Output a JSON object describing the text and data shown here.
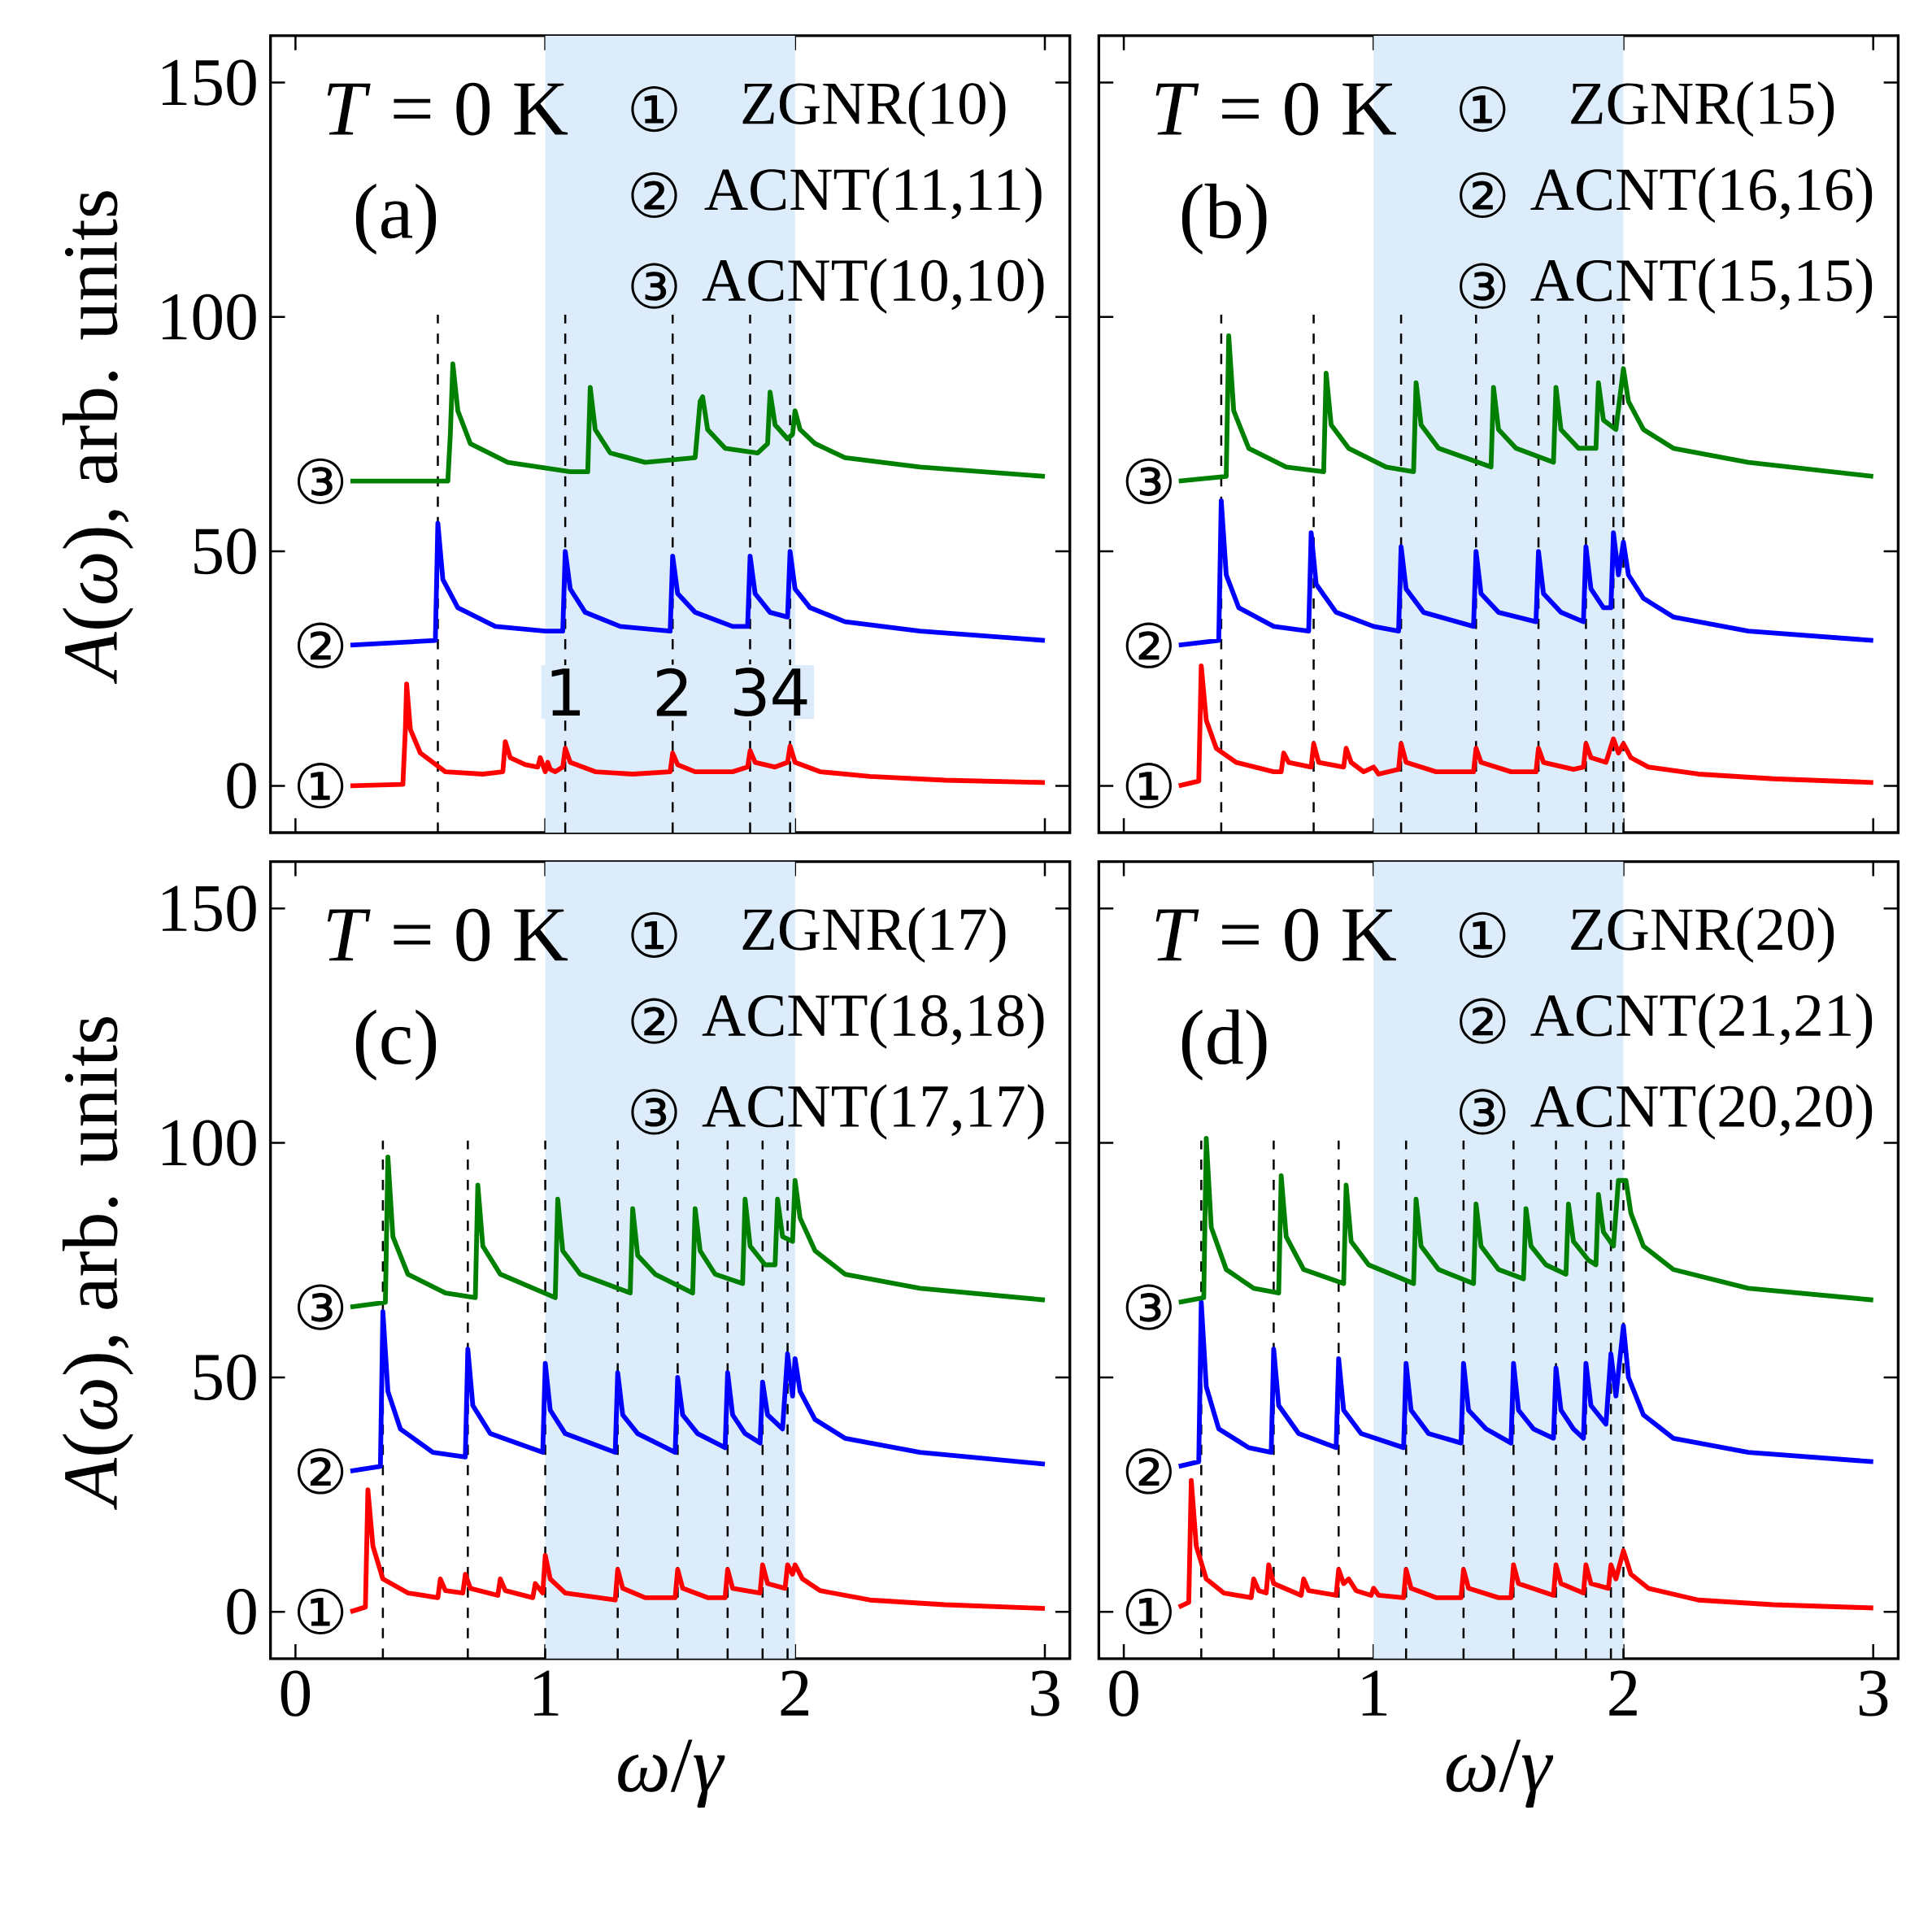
{
  "chart_data": [
    {
      "type": "line",
      "xlim": [
        -0.1,
        3.1
      ],
      "ylim": [
        -10,
        160
      ],
      "xticks": [
        0,
        1,
        2,
        3
      ],
      "yticks": [
        0,
        50,
        100,
        150
      ],
      "ylabel": "*A*(*ω*), arb. units",
      "tick_labels": "y",
      "bands": [
        {
          "axis": "x",
          "from": 1,
          "to": 2,
          "color": "#dcecfb"
        }
      ],
      "ref_lines": [
        {
          "axis": "x",
          "value": 0.57,
          "color": "#000000",
          "line_style": "dashed"
        },
        {
          "axis": "x",
          "value": 1.08,
          "color": "#000000",
          "line_style": "dashed"
        },
        {
          "axis": "x",
          "value": 1.51,
          "color": "#000000",
          "line_style": "dashed"
        },
        {
          "axis": "x",
          "value": 1.82,
          "color": "#000000",
          "line_style": "dashed"
        },
        {
          "axis": "x",
          "value": 1.98,
          "color": "#000000",
          "line_style": "dashed"
        }
      ],
      "series": [
        {
          "color": "#ff0000",
          "x": [
            0.22,
            0.43,
            0.44,
            0.445,
            0.46,
            0.5,
            0.6,
            0.75,
            0.83,
            0.84,
            0.86,
            0.92,
            0.97,
            0.98,
            1.0,
            1.01,
            1.02,
            1.04,
            1.07,
            1.08,
            1.1,
            1.2,
            1.35,
            1.5,
            1.51,
            1.53,
            1.6,
            1.75,
            1.81,
            1.82,
            1.84,
            1.92,
            1.97,
            1.98,
            2.0,
            2.1,
            2.3,
            2.6,
            3.0
          ],
          "values": [
            0,
            0.3,
            12,
            21.7,
            12,
            7,
            3,
            2.5,
            3,
            9.4,
            6,
            4.5,
            4,
            6,
            3,
            5,
            3.5,
            3,
            4,
            8,
            5,
            3,
            2.5,
            3,
            7,
            4.5,
            3,
            3,
            4,
            7.5,
            5,
            4,
            5,
            8.5,
            5,
            3,
            2,
            1.2,
            0.7
          ]
        },
        {
          "color": "#0000ff",
          "x": [
            0.22,
            0.56,
            0.57,
            0.59,
            0.65,
            0.8,
            1.0,
            1.07,
            1.08,
            1.1,
            1.16,
            1.3,
            1.5,
            1.51,
            1.53,
            1.6,
            1.75,
            1.81,
            1.82,
            1.84,
            1.9,
            1.97,
            1.98,
            2.0,
            2.06,
            2.2,
            2.5,
            3.0
          ],
          "values": [
            30,
            31,
            56,
            44,
            38,
            34,
            33,
            33,
            50,
            42,
            37,
            34,
            33,
            49,
            41,
            37,
            34,
            34,
            49,
            41,
            37,
            36,
            50,
            42,
            38,
            35,
            33,
            31
          ]
        },
        {
          "color": "#008000",
          "x": [
            0.22,
            0.61,
            0.62,
            0.63,
            0.65,
            0.7,
            0.85,
            1.1,
            1.17,
            1.18,
            1.2,
            1.26,
            1.4,
            1.6,
            1.62,
            1.63,
            1.65,
            1.72,
            1.85,
            1.89,
            1.9,
            1.92,
            1.97,
            1.99,
            2.0,
            2.02,
            2.08,
            2.2,
            2.5,
            3.0
          ],
          "values": [
            65,
            65,
            75,
            90,
            80,
            73,
            69,
            67,
            67,
            85,
            76,
            71,
            69,
            70,
            82,
            83,
            76,
            72,
            71,
            73,
            84,
            77,
            74,
            75,
            80,
            76,
            73,
            70,
            68,
            66
          ]
        }
      ],
      "annotations": [
        "*T* = 0 K",
        "(a)",
        "①",
        "ZGNR(10)",
        "②",
        "ACNT(11,11)",
        "③",
        "ACNT(10,10)",
        "①",
        "②",
        "③",
        {
          "text": "1",
          "x": 1.08,
          "y": 20
        },
        {
          "text": "2",
          "x": 1.51,
          "y": 20
        },
        {
          "text": "3",
          "x": 1.82,
          "y": 20
        },
        {
          "text": "4",
          "x": 1.98,
          "y": 20
        }
      ]
    },
    {
      "type": "line",
      "xlim": [
        -0.1,
        3.1
      ],
      "ylim": [
        -10,
        160
      ],
      "xticks": [
        0,
        1,
        2,
        3
      ],
      "yticks": [
        0,
        50,
        100,
        150
      ],
      "tick_labels": false,
      "bands": [
        {
          "axis": "x",
          "from": 1,
          "to": 2,
          "color": "#dcecfb"
        }
      ],
      "ref_lines": [
        {
          "axis": "x",
          "value": 0.39,
          "color": "#000000",
          "line_style": "dashed"
        },
        {
          "axis": "x",
          "value": 0.76,
          "color": "#000000",
          "line_style": "dashed"
        },
        {
          "axis": "x",
          "value": 1.11,
          "color": "#000000",
          "line_style": "dashed"
        },
        {
          "axis": "x",
          "value": 1.41,
          "color": "#000000",
          "line_style": "dashed"
        },
        {
          "axis": "x",
          "value": 1.66,
          "color": "#000000",
          "line_style": "dashed"
        },
        {
          "axis": "x",
          "value": 1.85,
          "color": "#000000",
          "line_style": "dashed"
        },
        {
          "axis": "x",
          "value": 1.96,
          "color": "#000000",
          "line_style": "dashed"
        },
        {
          "axis": "x",
          "value": 2.0,
          "color": "#000000",
          "line_style": "dashed"
        }
      ],
      "series": [
        {
          "color": "#ff0000",
          "x": [
            0.22,
            0.3,
            0.31,
            0.33,
            0.37,
            0.45,
            0.6,
            0.63,
            0.64,
            0.66,
            0.75,
            0.76,
            0.78,
            0.88,
            0.89,
            0.91,
            0.96,
            1.0,
            1.02,
            1.1,
            1.11,
            1.13,
            1.25,
            1.4,
            1.41,
            1.43,
            1.55,
            1.65,
            1.66,
            1.68,
            1.8,
            1.84,
            1.85,
            1.87,
            1.93,
            1.96,
            1.98,
            2.0,
            2.03,
            2.1,
            2.3,
            2.6,
            3.0
          ],
          "values": [
            0,
            1,
            25.6,
            14,
            8,
            5,
            3,
            3,
            7,
            5,
            4,
            9,
            5,
            4,
            8,
            5,
            3,
            4,
            2.5,
            3.5,
            9,
            5,
            3,
            3,
            8,
            5,
            3,
            3,
            8,
            5,
            3.5,
            4,
            9,
            6,
            5,
            10,
            7,
            9,
            6,
            4,
            2.5,
            1.5,
            0.7
          ]
        },
        {
          "color": "#0000ff",
          "x": [
            0.22,
            0.38,
            0.39,
            0.41,
            0.46,
            0.6,
            0.74,
            0.75,
            0.77,
            0.85,
            1.0,
            1.1,
            1.11,
            1.13,
            1.2,
            1.4,
            1.41,
            1.43,
            1.5,
            1.65,
            1.66,
            1.68,
            1.75,
            1.84,
            1.85,
            1.87,
            1.92,
            1.95,
            1.96,
            1.98,
            2.0,
            2.02,
            2.08,
            2.2,
            2.5,
            3.0
          ],
          "values": [
            30,
            31,
            60.8,
            45,
            38,
            34,
            33,
            54,
            43,
            37,
            34,
            33,
            51,
            42,
            37,
            34,
            50,
            41,
            37,
            35,
            50,
            41,
            37,
            35,
            51,
            42,
            38,
            38,
            54,
            45,
            52,
            45,
            40,
            36,
            33,
            31
          ]
        },
        {
          "color": "#008000",
          "x": [
            0.22,
            0.41,
            0.42,
            0.44,
            0.5,
            0.65,
            0.8,
            0.81,
            0.83,
            0.9,
            1.05,
            1.16,
            1.17,
            1.19,
            1.26,
            1.47,
            1.48,
            1.5,
            1.57,
            1.72,
            1.73,
            1.75,
            1.82,
            1.89,
            1.9,
            1.92,
            1.97,
            2.0,
            2.02,
            2.08,
            2.2,
            2.5,
            3.0
          ],
          "values": [
            65,
            66,
            96,
            80,
            72,
            68,
            67,
            88,
            77,
            72,
            68,
            67,
            86,
            77,
            72,
            68,
            85,
            76,
            72,
            69,
            85,
            76,
            72,
            72,
            86,
            78,
            76,
            89,
            82,
            76,
            72,
            69,
            66
          ]
        }
      ],
      "annotations": [
        "*T* = 0 K",
        "(b)",
        "①",
        "ZGNR(15)",
        "②",
        "ACNT(16,16)",
        "③",
        "ACNT(15,15)",
        "①",
        "②",
        "③"
      ]
    },
    {
      "type": "line",
      "xlim": [
        -0.1,
        3.1
      ],
      "ylim": [
        -10,
        160
      ],
      "xticks": [
        0,
        1,
        2,
        3
      ],
      "yticks": [
        0,
        50,
        100,
        150
      ],
      "xlabel": "*ω*/*γ*",
      "ylabel": "*A*(*ω*), arb. units",
      "bands": [
        {
          "axis": "x",
          "from": 1,
          "to": 2,
          "color": "#dcecfb"
        }
      ],
      "ref_lines": [
        {
          "axis": "x",
          "value": 0.35,
          "color": "#000000",
          "line_style": "dashed"
        },
        {
          "axis": "x",
          "value": 0.69,
          "color": "#000000",
          "line_style": "dashed"
        },
        {
          "axis": "x",
          "value": 1.0,
          "color": "#000000",
          "line_style": "dashed"
        },
        {
          "axis": "x",
          "value": 1.29,
          "color": "#000000",
          "line_style": "dashed"
        },
        {
          "axis": "x",
          "value": 1.53,
          "color": "#000000",
          "line_style": "dashed"
        },
        {
          "axis": "x",
          "value": 1.73,
          "color": "#000000",
          "line_style": "dashed"
        },
        {
          "axis": "x",
          "value": 1.87,
          "color": "#000000",
          "line_style": "dashed"
        },
        {
          "axis": "x",
          "value": 1.97,
          "color": "#000000",
          "line_style": "dashed"
        }
      ],
      "series": [
        {
          "color": "#ff0000",
          "x": [
            0.22,
            0.28,
            0.29,
            0.31,
            0.35,
            0.45,
            0.57,
            0.58,
            0.6,
            0.67,
            0.68,
            0.7,
            0.81,
            0.82,
            0.84,
            0.95,
            0.96,
            0.99,
            1.0,
            1.02,
            1.08,
            1.28,
            1.29,
            1.31,
            1.4,
            1.52,
            1.53,
            1.55,
            1.65,
            1.72,
            1.73,
            1.75,
            1.86,
            1.87,
            1.89,
            1.96,
            1.97,
            1.99,
            2.0,
            2.03,
            2.1,
            2.3,
            2.6,
            3.0
          ],
          "values": [
            0,
            1,
            26,
            14,
            7,
            4,
            3,
            7,
            4.5,
            4,
            8,
            5,
            3.5,
            7,
            4.5,
            3,
            6,
            4,
            12,
            7,
            4,
            2.5,
            9,
            5,
            3,
            3,
            9,
            5,
            3,
            3,
            9,
            5,
            4,
            10,
            6,
            5,
            10,
            8,
            10,
            7,
            4.5,
            2.5,
            1.5,
            0.7
          ]
        },
        {
          "color": "#0000ff",
          "x": [
            0.22,
            0.34,
            0.35,
            0.37,
            0.42,
            0.55,
            0.68,
            0.69,
            0.71,
            0.78,
            0.99,
            1.0,
            1.02,
            1.08,
            1.28,
            1.29,
            1.31,
            1.37,
            1.52,
            1.53,
            1.55,
            1.61,
            1.72,
            1.73,
            1.75,
            1.8,
            1.86,
            1.87,
            1.89,
            1.95,
            1.97,
            1.99,
            2.0,
            2.02,
            2.08,
            2.2,
            2.5,
            3.0
          ],
          "values": [
            30,
            31,
            64,
            47,
            39,
            34,
            33,
            56,
            44,
            38,
            34,
            53,
            43,
            38,
            34,
            51,
            42,
            38,
            34,
            50,
            42,
            38,
            35,
            51,
            42,
            38,
            36,
            49,
            42,
            39,
            55,
            46,
            54,
            47,
            41,
            37,
            34,
            31.5
          ]
        },
        {
          "color": "#008000",
          "x": [
            0.22,
            0.36,
            0.37,
            0.39,
            0.45,
            0.6,
            0.72,
            0.73,
            0.75,
            0.82,
            1.04,
            1.05,
            1.07,
            1.14,
            1.34,
            1.35,
            1.37,
            1.44,
            1.59,
            1.6,
            1.62,
            1.68,
            1.79,
            1.8,
            1.82,
            1.88,
            1.92,
            1.93,
            1.95,
            1.99,
            2.0,
            2.02,
            2.08,
            2.2,
            2.5,
            3.0
          ],
          "values": [
            65,
            66,
            97,
            80,
            72,
            68,
            67,
            91,
            78,
            72,
            67,
            88,
            77,
            72,
            68,
            86,
            76,
            72,
            68,
            86,
            77,
            72,
            70,
            88,
            78,
            74,
            74,
            88,
            80,
            79,
            92,
            84,
            77,
            72,
            69,
            66.5
          ]
        }
      ],
      "annotations": [
        "*T* = 0 K",
        "(c)",
        "①",
        "ZGNR(17)",
        "②",
        "ACNT(18,18)",
        "③",
        "ACNT(17,17)",
        "①",
        "②",
        "③"
      ]
    },
    {
      "type": "line",
      "xlim": [
        -0.1,
        3.1
      ],
      "ylim": [
        -10,
        160
      ],
      "xticks": [
        0,
        1,
        2,
        3
      ],
      "yticks": [
        0,
        50,
        100,
        150
      ],
      "xlabel": "*ω*/*γ*",
      "tick_labels": "x",
      "bands": [
        {
          "axis": "x",
          "from": 1,
          "to": 2,
          "color": "#dcecfb"
        }
      ],
      "ref_lines": [
        {
          "axis": "x",
          "value": 0.31,
          "color": "#000000",
          "line_style": "dashed"
        },
        {
          "axis": "x",
          "value": 0.6,
          "color": "#000000",
          "line_style": "dashed"
        },
        {
          "axis": "x",
          "value": 0.86,
          "color": "#000000",
          "line_style": "dashed"
        },
        {
          "axis": "x",
          "value": 1.13,
          "color": "#000000",
          "line_style": "dashed"
        },
        {
          "axis": "x",
          "value": 1.36,
          "color": "#000000",
          "line_style": "dashed"
        },
        {
          "axis": "x",
          "value": 1.56,
          "color": "#000000",
          "line_style": "dashed"
        },
        {
          "axis": "x",
          "value": 1.73,
          "color": "#000000",
          "line_style": "dashed"
        },
        {
          "axis": "x",
          "value": 1.85,
          "color": "#000000",
          "line_style": "dashed"
        },
        {
          "axis": "x",
          "value": 1.95,
          "color": "#000000",
          "line_style": "dashed"
        },
        {
          "axis": "x",
          "value": 2.0,
          "color": "#000000",
          "line_style": "dashed"
        }
      ],
      "series": [
        {
          "color": "#ff0000",
          "x": [
            0.22,
            0.26,
            0.27,
            0.29,
            0.33,
            0.4,
            0.51,
            0.52,
            0.54,
            0.57,
            0.58,
            0.6,
            0.71,
            0.72,
            0.74,
            0.85,
            0.86,
            0.88,
            0.9,
            0.93,
            0.99,
            1.0,
            1.02,
            1.12,
            1.13,
            1.15,
            1.25,
            1.35,
            1.36,
            1.38,
            1.5,
            1.55,
            1.56,
            1.58,
            1.72,
            1.73,
            1.75,
            1.84,
            1.85,
            1.87,
            1.94,
            1.95,
            1.97,
            2.0,
            2.03,
            2.1,
            2.3,
            2.6,
            3.0
          ],
          "values": [
            1,
            2,
            28,
            14,
            7,
            4,
            3,
            7,
            4.5,
            4,
            10,
            6,
            3.5,
            7,
            4.5,
            3.5,
            9,
            6,
            7,
            4.5,
            3.5,
            5,
            3.5,
            3,
            9,
            5,
            3,
            3,
            9,
            5,
            3,
            3,
            10,
            6,
            3.5,
            10,
            6,
            4,
            10,
            6,
            5,
            10,
            7,
            13,
            8,
            5,
            2.5,
            1.5,
            0.8
          ]
        },
        {
          "color": "#0000ff",
          "x": [
            0.22,
            0.3,
            0.31,
            0.33,
            0.38,
            0.5,
            0.59,
            0.6,
            0.62,
            0.7,
            0.85,
            0.86,
            0.88,
            0.95,
            1.12,
            1.13,
            1.15,
            1.22,
            1.35,
            1.36,
            1.38,
            1.45,
            1.55,
            1.56,
            1.58,
            1.64,
            1.72,
            1.73,
            1.75,
            1.8,
            1.84,
            1.85,
            1.87,
            1.93,
            1.95,
            1.97,
            2.0,
            2.02,
            2.08,
            2.2,
            2.5,
            3.0
          ],
          "values": [
            31,
            32,
            66,
            48,
            39,
            35,
            34,
            56,
            44,
            38,
            35,
            54,
            43,
            38,
            35,
            53,
            43,
            38,
            36,
            53,
            43,
            39,
            36,
            53,
            43,
            39,
            37,
            52,
            43,
            39,
            37,
            53,
            44,
            40,
            55,
            46,
            61,
            50,
            42,
            37,
            34,
            32
          ]
        },
        {
          "color": "#008000",
          "x": [
            0.22,
            0.32,
            0.33,
            0.35,
            0.41,
            0.52,
            0.62,
            0.63,
            0.65,
            0.72,
            0.88,
            0.89,
            0.91,
            0.98,
            1.16,
            1.17,
            1.19,
            1.26,
            1.4,
            1.41,
            1.43,
            1.5,
            1.6,
            1.61,
            1.63,
            1.69,
            1.77,
            1.78,
            1.8,
            1.86,
            1.89,
            1.9,
            1.92,
            1.96,
            1.98,
            2.01,
            2.03,
            2.08,
            2.2,
            2.5,
            3.0
          ],
          "values": [
            66,
            67,
            101,
            82,
            73,
            69,
            68,
            93,
            80,
            73,
            70,
            91,
            79,
            74,
            70,
            88,
            78,
            73,
            70,
            87,
            78,
            73,
            71,
            86,
            78,
            74,
            72,
            87,
            79,
            75,
            74,
            89,
            81,
            78,
            92,
            92,
            85,
            78,
            73,
            69,
            66.5
          ]
        }
      ],
      "annotations": [
        "*T* = 0 K",
        "(d)",
        "①",
        "ZGNR(20)",
        "②",
        "ACNT(21,21)",
        "③",
        "ACNT(20,20)",
        "①",
        "②",
        "③"
      ]
    }
  ]
}
